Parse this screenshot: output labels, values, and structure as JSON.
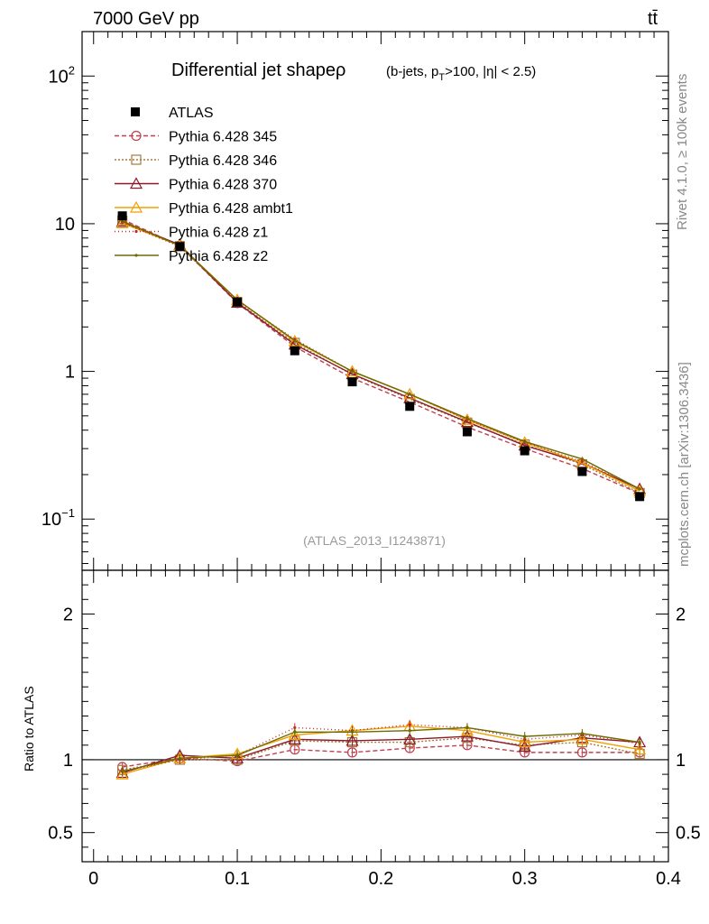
{
  "header": {
    "energy_label": "7000 GeV pp",
    "process_label": "tt̄"
  },
  "side_text": {
    "rivet": "Rivet 4.1.0, ≥ 100k events",
    "mcplots": "mcplots.cern.ch [arXiv:1306.3436]"
  },
  "chart_data": {
    "type": "line",
    "title": "Differential jet shapeρ",
    "subtitle": "(b-jets, p_T>100, |η| < 2.5)",
    "analysis_id": "(ATLAS_2013_I1243871)",
    "xlabel": "",
    "ylabel_main": "",
    "ylabel_ratio": "Ratio to ATLAS",
    "xlim": [
      -0.008,
      0.4
    ],
    "ylim_main": [
      0.045,
      200
    ],
    "yscale_main": "log",
    "ylim_ratio": [
      0.3,
      2.3
    ],
    "x_ticks": [
      0,
      0.1,
      0.2,
      0.3,
      0.4
    ],
    "x_tick_labels": [
      "0",
      "0.1",
      "0.2",
      "0.3",
      "0.4"
    ],
    "y_ticks_main": [
      0.1,
      1,
      10,
      100
    ],
    "y_tick_labels_main": [
      "10^-1",
      "1",
      "10",
      "10^2"
    ],
    "y_ticks_ratio": [
      0.5,
      1,
      2
    ],
    "y_tick_labels_ratio": [
      "0.5",
      "1",
      "2"
    ],
    "x": [
      0.02,
      0.06,
      0.1,
      0.14,
      0.18,
      0.22,
      0.26,
      0.3,
      0.34,
      0.38
    ],
    "data": {
      "name": "ATLAS",
      "values": [
        11.3,
        7.0,
        2.95,
        1.38,
        0.85,
        0.58,
        0.39,
        0.29,
        0.21,
        0.142
      ]
    },
    "legend_position": "top-left",
    "series": [
      {
        "name": "Pythia 6.428 345",
        "color": "#c04050",
        "dash": "5,3",
        "marker": "circle",
        "values": [
          10.7,
          7.1,
          2.9,
          1.47,
          0.9,
          0.62,
          0.42,
          0.3,
          0.22,
          0.149
        ],
        "ratio": [
          0.95,
          1.01,
          0.99,
          1.07,
          1.05,
          1.08,
          1.1,
          1.05,
          1.05,
          1.05
        ]
      },
      {
        "name": "Pythia 6.428 346",
        "color": "#a87a3a",
        "dash": "2,2",
        "marker": "square",
        "values": [
          10.5,
          7.05,
          2.95,
          1.56,
          0.95,
          0.65,
          0.45,
          0.32,
          0.235,
          0.15
        ],
        "ratio": [
          0.93,
          1.0,
          1.0,
          1.13,
          1.12,
          1.12,
          1.15,
          1.1,
          1.12,
          1.04
        ]
      },
      {
        "name": "Pythia 6.428 370",
        "color": "#8b1a2a",
        "dash": "",
        "marker": "triangle",
        "values": [
          10.3,
          7.2,
          2.92,
          1.52,
          0.96,
          0.66,
          0.455,
          0.315,
          0.24,
          0.16
        ],
        "ratio": [
          0.91,
          1.03,
          1.01,
          1.14,
          1.13,
          1.14,
          1.16,
          1.09,
          1.15,
          1.12
        ]
      },
      {
        "name": "Pythia 6.428 ambt1",
        "color": "#f0a000",
        "dash": "",
        "marker": "triangle",
        "values": [
          10.1,
          7.1,
          3.05,
          1.6,
          1.0,
          0.7,
          0.47,
          0.33,
          0.24,
          0.155
        ],
        "ratio": [
          0.9,
          1.01,
          1.04,
          1.17,
          1.2,
          1.23,
          1.2,
          1.12,
          1.14,
          1.07
        ]
      },
      {
        "name": "Pythia 6.428 z1",
        "color": "#d0202a",
        "dash": "1,3",
        "marker": "dot",
        "values": [
          10.2,
          7.0,
          3.0,
          1.65,
          1.0,
          0.7,
          0.47,
          0.33,
          0.245,
          0.16
        ],
        "ratio": [
          0.92,
          1.0,
          1.03,
          1.22,
          1.2,
          1.24,
          1.22,
          1.14,
          1.17,
          1.11
        ]
      },
      {
        "name": "Pythia 6.428 z2",
        "color": "#6b6b00",
        "dash": "",
        "marker": "dot",
        "values": [
          10.4,
          7.1,
          3.05,
          1.62,
          1.0,
          0.7,
          0.48,
          0.335,
          0.255,
          0.16
        ],
        "ratio": [
          0.92,
          1.01,
          1.03,
          1.19,
          1.19,
          1.2,
          1.22,
          1.16,
          1.18,
          1.12
        ]
      }
    ]
  }
}
